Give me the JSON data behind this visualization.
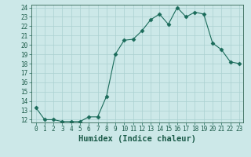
{
  "x": [
    0,
    1,
    2,
    3,
    4,
    5,
    6,
    7,
    8,
    9,
    10,
    11,
    12,
    13,
    14,
    15,
    16,
    17,
    18,
    19,
    20,
    21,
    22,
    23
  ],
  "y": [
    13.3,
    12.0,
    12.0,
    11.8,
    11.8,
    11.8,
    12.3,
    12.3,
    14.5,
    19.0,
    20.5,
    20.6,
    21.5,
    22.7,
    23.3,
    22.2,
    24.0,
    23.0,
    23.5,
    23.3,
    20.2,
    19.5,
    18.2,
    18.0
  ],
  "line_color": "#1a6b5a",
  "marker": "D",
  "marker_size": 2.5,
  "bg_color": "#cce8e8",
  "grid_color": "#aad0d0",
  "xlabel": "Humidex (Indice chaleur)",
  "ylim_min": 12,
  "ylim_max": 24,
  "xlim_min": 0,
  "xlim_max": 23,
  "yticks": [
    12,
    13,
    14,
    15,
    16,
    17,
    18,
    19,
    20,
    21,
    22,
    23,
    24
  ],
  "xticks": [
    0,
    1,
    2,
    3,
    4,
    5,
    6,
    7,
    8,
    9,
    10,
    11,
    12,
    13,
    14,
    15,
    16,
    17,
    18,
    19,
    20,
    21,
    22,
    23
  ],
  "tick_fontsize": 5.5,
  "xlabel_fontsize": 7.5,
  "spine_color": "#336655",
  "tick_color": "#1a6b5a"
}
